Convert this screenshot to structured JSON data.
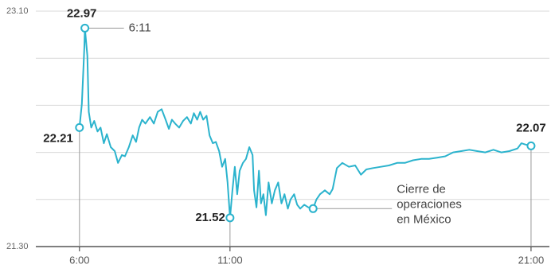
{
  "chart_data": {
    "type": "line",
    "xlim": [
      4.55,
      21.61
    ],
    "ylim": [
      21.3,
      23.1
    ],
    "xticks": [
      {
        "value": 6,
        "label": "6:00"
      },
      {
        "value": 11,
        "label": "11:00"
      },
      {
        "value": 21,
        "label": "21:00"
      }
    ],
    "yticks": [
      {
        "value": 23.1,
        "label": "23.10"
      },
      {
        "value": 21.3,
        "label": "21.30"
      }
    ],
    "ygrid": [
      23.1,
      22.74,
      22.38,
      22.02,
      21.66
    ],
    "x": [
      6.0,
      6.08,
      6.16,
      6.18,
      6.26,
      6.31,
      6.39,
      6.49,
      6.6,
      6.7,
      6.81,
      6.91,
      7.04,
      7.17,
      7.28,
      7.41,
      7.51,
      7.64,
      7.77,
      7.88,
      7.98,
      8.08,
      8.19,
      8.34,
      8.47,
      8.6,
      8.73,
      8.86,
      8.97,
      9.07,
      9.18,
      9.31,
      9.44,
      9.57,
      9.7,
      9.8,
      9.91,
      10.01,
      10.11,
      10.22,
      10.32,
      10.43,
      10.53,
      10.64,
      10.74,
      10.84,
      10.92,
      11.0,
      11.08,
      11.16,
      11.24,
      11.32,
      11.43,
      11.53,
      11.64,
      11.75,
      11.8,
      11.88,
      11.96,
      12.03,
      12.11,
      12.19,
      12.28,
      12.39,
      12.49,
      12.6,
      12.71,
      12.81,
      12.92,
      13.01,
      13.13,
      13.23,
      13.33,
      13.47,
      13.6,
      13.76,
      13.87,
      13.99,
      14.15,
      14.31,
      14.41,
      14.55,
      14.73,
      14.95,
      15.16,
      15.35,
      15.53,
      15.75,
      16.01,
      16.28,
      16.55,
      16.81,
      17.08,
      17.35,
      17.61,
      17.88,
      18.15,
      18.41,
      18.68,
      18.95,
      19.21,
      19.48,
      19.75,
      20.01,
      20.28,
      20.55,
      20.68,
      20.81,
      21.0
    ],
    "series": [
      {
        "color": "#2bb3cd",
        "values": [
          22.21,
          22.39,
          22.82,
          22.97,
          22.76,
          22.33,
          22.21,
          22.26,
          22.18,
          22.21,
          22.09,
          22.16,
          22.06,
          22.03,
          21.94,
          22.0,
          21.99,
          22.06,
          22.15,
          22.1,
          22.21,
          22.27,
          22.24,
          22.29,
          22.24,
          22.33,
          22.35,
          22.27,
          22.2,
          22.27,
          22.24,
          22.21,
          22.26,
          22.29,
          22.24,
          22.32,
          22.27,
          22.33,
          22.27,
          22.3,
          22.15,
          22.09,
          22.1,
          22.03,
          21.91,
          21.97,
          21.79,
          21.52,
          21.73,
          21.91,
          21.7,
          21.88,
          21.94,
          21.97,
          22.06,
          22.0,
          21.73,
          21.6,
          21.88,
          21.63,
          21.7,
          21.54,
          21.79,
          21.63,
          21.73,
          21.79,
          21.63,
          21.7,
          21.59,
          21.66,
          21.7,
          21.62,
          21.59,
          21.62,
          21.6,
          21.59,
          21.66,
          21.7,
          21.73,
          21.7,
          21.74,
          21.9,
          21.94,
          21.91,
          21.92,
          21.85,
          21.89,
          21.9,
          21.91,
          21.92,
          21.94,
          21.94,
          21.96,
          21.97,
          21.97,
          21.98,
          21.99,
          22.02,
          22.03,
          22.04,
          22.03,
          22.02,
          22.04,
          22.02,
          22.03,
          22.05,
          22.09,
          22.08,
          22.07
        ]
      }
    ],
    "markers": [
      {
        "x": 6,
        "value": 22.21
      },
      {
        "x": 6.18,
        "value": 22.97,
        "note": [
          "6:11"
        ]
      },
      {
        "x": 11,
        "value": 21.52
      },
      {
        "x": 13.76,
        "y": 21.59,
        "note": [
          "Cierre de",
          "operaciones",
          "en México"
        ]
      },
      {
        "x": 21,
        "value": 22.07
      }
    ]
  }
}
